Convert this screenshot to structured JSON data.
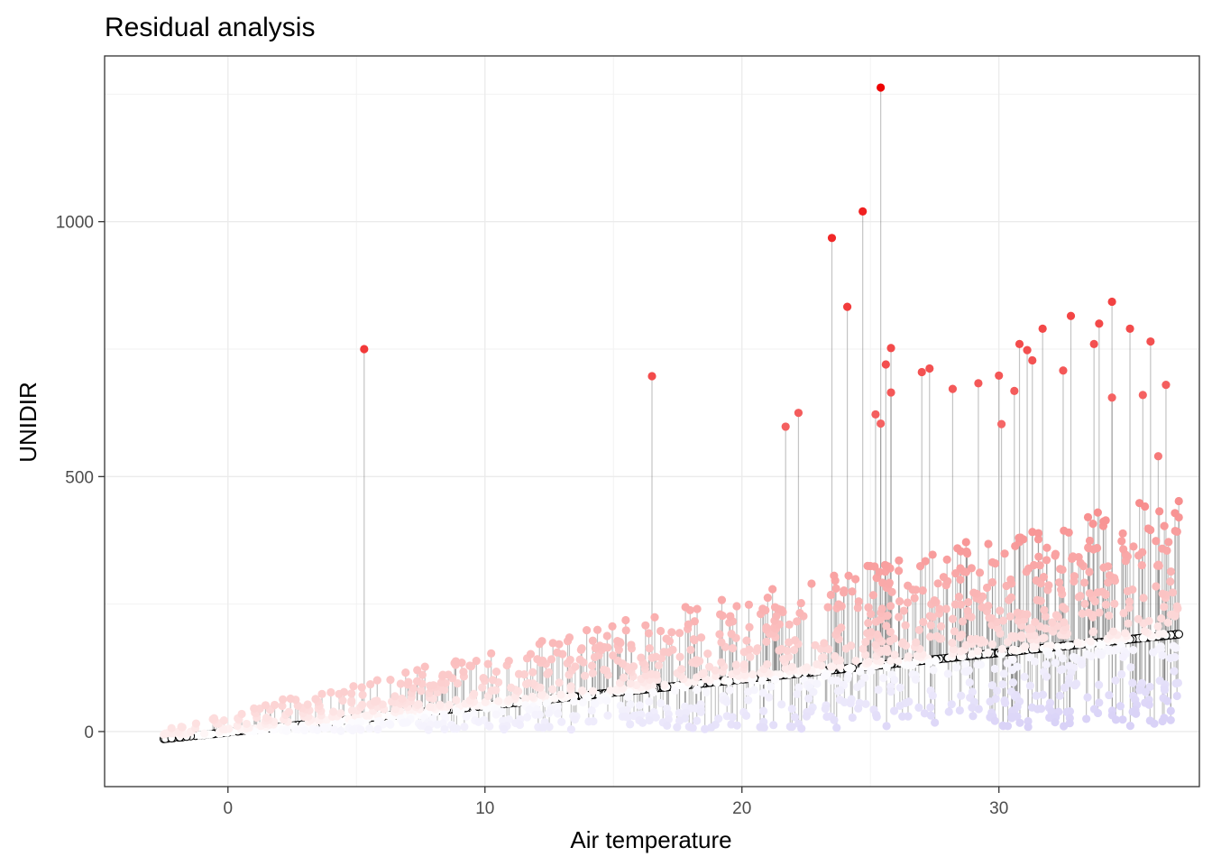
{
  "chart_data": {
    "type": "scatter",
    "title": "Residual analysis",
    "xlabel": "Air temperature",
    "ylabel": "UNIDIR",
    "xlim": [
      -4.8,
      37.8
    ],
    "ylim": [
      -108,
      1325
    ],
    "x_ticks": [
      0,
      10,
      20,
      30
    ],
    "x_tick_labels": [
      "0",
      "10",
      "20",
      "30"
    ],
    "y_ticks": [
      0,
      500,
      1000
    ],
    "y_tick_labels": [
      "0",
      "500",
      "1000"
    ],
    "grid": true,
    "legend": "none",
    "fit_line": {
      "intercept": -1.5,
      "slope": 5.2,
      "x_range": [
        -2.8,
        37.0
      ]
    },
    "color_scale": {
      "low": "#d9d2f7",
      "mid": "#ffffff",
      "high": "#ee0000",
      "residual_max": 1150
    },
    "notable_points": [
      {
        "x": 25.4,
        "y": 1263
      },
      {
        "x": 24.7,
        "y": 1020
      },
      {
        "x": 23.5,
        "y": 968
      },
      {
        "x": 24.1,
        "y": 833
      },
      {
        "x": 5.3,
        "y": 750
      },
      {
        "x": 16.5,
        "y": 697
      },
      {
        "x": 34.4,
        "y": 843
      },
      {
        "x": 32.8,
        "y": 815
      },
      {
        "x": 31.7,
        "y": 790
      },
      {
        "x": 33.9,
        "y": 800
      },
      {
        "x": 35.1,
        "y": 790
      },
      {
        "x": 35.9,
        "y": 765
      },
      {
        "x": 30.8,
        "y": 760
      },
      {
        "x": 25.8,
        "y": 752
      },
      {
        "x": 31.1,
        "y": 748
      },
      {
        "x": 33.7,
        "y": 760
      },
      {
        "x": 25.6,
        "y": 720
      },
      {
        "x": 27.3,
        "y": 712
      },
      {
        "x": 27.0,
        "y": 705
      },
      {
        "x": 30.0,
        "y": 698
      },
      {
        "x": 32.5,
        "y": 708
      },
      {
        "x": 31.3,
        "y": 728
      },
      {
        "x": 36.5,
        "y": 680
      },
      {
        "x": 28.2,
        "y": 672
      },
      {
        "x": 29.2,
        "y": 683
      },
      {
        "x": 25.8,
        "y": 665
      },
      {
        "x": 30.6,
        "y": 668
      },
      {
        "x": 34.4,
        "y": 655
      },
      {
        "x": 35.6,
        "y": 660
      },
      {
        "x": 21.7,
        "y": 598
      },
      {
        "x": 22.2,
        "y": 625
      },
      {
        "x": 25.2,
        "y": 622
      },
      {
        "x": 25.4,
        "y": 604
      },
      {
        "x": 30.1,
        "y": 603
      },
      {
        "x": 36.2,
        "y": 540
      },
      {
        "x": 37.0,
        "y": 452
      },
      {
        "x": 37.0,
        "y": 420
      }
    ],
    "n_background_points": 1500
  }
}
